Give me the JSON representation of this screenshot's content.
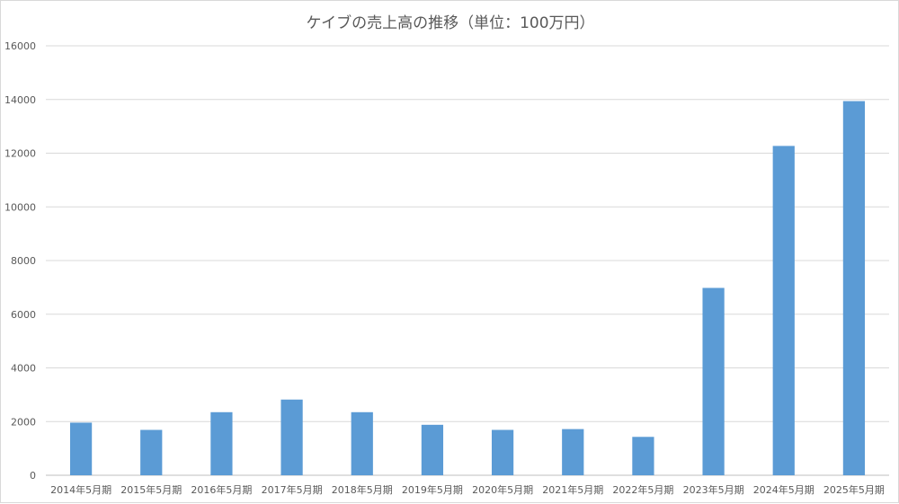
{
  "chart_data": {
    "type": "bar",
    "title": "ケイブの売上高の推移（単位：100万円）",
    "xlabel": "",
    "ylabel": "",
    "categories": [
      "2014年5月期",
      "2015年5月期",
      "2016年5月期",
      "2017年5月期",
      "2018年5月期",
      "2019年5月期",
      "2020年5月期",
      "2021年5月期",
      "2022年5月期",
      "2023年5月期",
      "2024年5月期",
      "2025年5月期"
    ],
    "values": [
      1960,
      1690,
      2350,
      2820,
      2350,
      1880,
      1690,
      1720,
      1430,
      6980,
      12270,
      13940
    ],
    "ylim": [
      0,
      16000
    ],
    "yticks": [
      0,
      2000,
      4000,
      6000,
      8000,
      10000,
      12000,
      14000,
      16000
    ],
    "grid": true,
    "legend": "none",
    "bar_color": "#5b9bd5",
    "grid_color": "#d9d9d9"
  }
}
